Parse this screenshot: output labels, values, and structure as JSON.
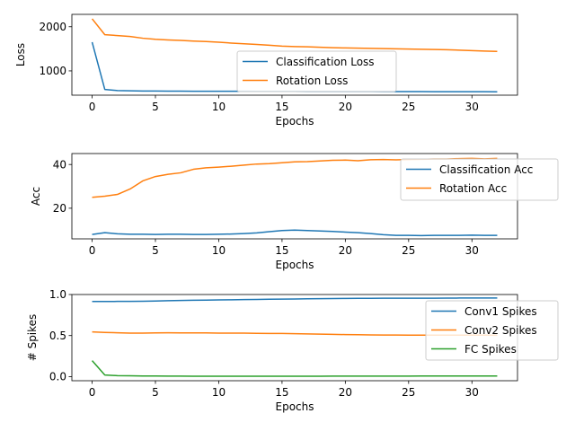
{
  "chart_data": [
    {
      "type": "line",
      "xlabel": "Epochs",
      "ylabel": "Loss",
      "xlim": [
        -1.6,
        33.6
      ],
      "ylim": [
        450,
        2280
      ],
      "xticks": [
        0,
        5,
        10,
        15,
        20,
        25,
        30
      ],
      "yticks": [
        1000,
        2000
      ],
      "legend_position": "lower-center",
      "grid": false,
      "x": [
        0,
        1,
        2,
        3,
        4,
        5,
        6,
        7,
        8,
        9,
        10,
        11,
        12,
        13,
        14,
        15,
        16,
        17,
        18,
        19,
        20,
        21,
        22,
        23,
        24,
        25,
        26,
        27,
        28,
        29,
        30,
        31,
        32
      ],
      "series": [
        {
          "name": "Classification Loss",
          "color": "#1f77b4",
          "values": [
            1650,
            580,
            555,
            548,
            545,
            543,
            542,
            541,
            540,
            540,
            539,
            538,
            538,
            537,
            537,
            536,
            536,
            535,
            535,
            534,
            534,
            533,
            533,
            532,
            532,
            531,
            531,
            530,
            530,
            529,
            529,
            528,
            527
          ]
        },
        {
          "name": "Rotation Loss",
          "color": "#ff7f0e",
          "values": [
            2180,
            1820,
            1800,
            1780,
            1740,
            1715,
            1700,
            1690,
            1675,
            1665,
            1650,
            1630,
            1615,
            1600,
            1580,
            1560,
            1550,
            1545,
            1535,
            1525,
            1520,
            1515,
            1510,
            1505,
            1500,
            1495,
            1490,
            1485,
            1480,
            1470,
            1460,
            1450,
            1440
          ]
        }
      ]
    },
    {
      "type": "line",
      "xlabel": "Epochs",
      "ylabel": "Acc",
      "xlim": [
        -1.6,
        33.6
      ],
      "ylim": [
        6,
        45
      ],
      "xticks": [
        0,
        5,
        10,
        15,
        20,
        25,
        30
      ],
      "yticks": [
        20,
        40
      ],
      "legend_position": "upper-right",
      "grid": false,
      "x": [
        0,
        1,
        2,
        3,
        4,
        5,
        6,
        7,
        8,
        9,
        10,
        11,
        12,
        13,
        14,
        15,
        16,
        17,
        18,
        19,
        20,
        21,
        22,
        23,
        24,
        25,
        26,
        27,
        28,
        29,
        30,
        31,
        32
      ],
      "series": [
        {
          "name": "Classification Acc",
          "color": "#1f77b4",
          "values": [
            8.0,
            8.8,
            8.3,
            8.1,
            8.1,
            8.0,
            8.1,
            8.1,
            8.0,
            8.0,
            8.1,
            8.2,
            8.4,
            8.7,
            9.3,
            9.8,
            10.0,
            9.8,
            9.6,
            9.4,
            9.1,
            8.8,
            8.4,
            7.9,
            7.6,
            7.6,
            7.5,
            7.6,
            7.6,
            7.6,
            7.7,
            7.6,
            7.6
          ]
        },
        {
          "name": "Rotation Acc",
          "color": "#ff7f0e",
          "values": [
            25.0,
            25.5,
            26.3,
            28.8,
            32.5,
            34.5,
            35.5,
            36.2,
            37.8,
            38.5,
            38.8,
            39.2,
            39.7,
            40.2,
            40.4,
            40.8,
            41.2,
            41.3,
            41.6,
            41.9,
            42.0,
            41.7,
            42.2,
            42.3,
            42.1,
            42.3,
            42.4,
            42.5,
            42.5,
            42.7,
            42.8,
            42.6,
            42.8
          ]
        }
      ]
    },
    {
      "type": "line",
      "xlabel": "Epochs",
      "ylabel": "# Spikes",
      "xlim": [
        -1.6,
        33.6
      ],
      "ylim": [
        -0.05,
        1.0
      ],
      "xticks": [
        0,
        5,
        10,
        15,
        20,
        25,
        30
      ],
      "yticks": [
        0.0,
        0.5,
        1.0
      ],
      "ytick_labels": [
        "0.0",
        "0.5",
        "1.0"
      ],
      "legend_position": "upper-right",
      "grid": false,
      "x": [
        0,
        1,
        2,
        3,
        4,
        5,
        6,
        7,
        8,
        9,
        10,
        11,
        12,
        13,
        14,
        15,
        16,
        17,
        18,
        19,
        20,
        21,
        22,
        23,
        24,
        25,
        26,
        27,
        28,
        29,
        30,
        31,
        32
      ],
      "series": [
        {
          "name": "Conv1 Spikes",
          "color": "#1f77b4",
          "values": [
            0.915,
            0.915,
            0.916,
            0.917,
            0.918,
            0.92,
            0.925,
            0.928,
            0.93,
            0.932,
            0.934,
            0.936,
            0.938,
            0.94,
            0.942,
            0.944,
            0.946,
            0.948,
            0.95,
            0.951,
            0.952,
            0.953,
            0.954,
            0.955,
            0.955,
            0.955,
            0.955,
            0.955,
            0.956,
            0.957,
            0.958,
            0.958,
            0.958
          ]
        },
        {
          "name": "Conv2 Spikes",
          "color": "#ff7f0e",
          "values": [
            0.545,
            0.538,
            0.534,
            0.53,
            0.53,
            0.532,
            0.534,
            0.533,
            0.533,
            0.532,
            0.53,
            0.53,
            0.529,
            0.527,
            0.526,
            0.525,
            0.523,
            0.52,
            0.518,
            0.515,
            0.512,
            0.51,
            0.508,
            0.507,
            0.506,
            0.505,
            0.505,
            0.505,
            0.505,
            0.505,
            0.505,
            0.505,
            0.504
          ]
        },
        {
          "name": "FC Spikes",
          "color": "#2ca02c",
          "values": [
            0.195,
            0.02,
            0.012,
            0.01,
            0.008,
            0.007,
            0.006,
            0.006,
            0.005,
            0.005,
            0.005,
            0.005,
            0.005,
            0.005,
            0.005,
            0.005,
            0.005,
            0.005,
            0.005,
            0.006,
            0.006,
            0.006,
            0.006,
            0.006,
            0.006,
            0.006,
            0.007,
            0.007,
            0.007,
            0.007,
            0.008,
            0.008,
            0.008
          ]
        }
      ]
    }
  ]
}
